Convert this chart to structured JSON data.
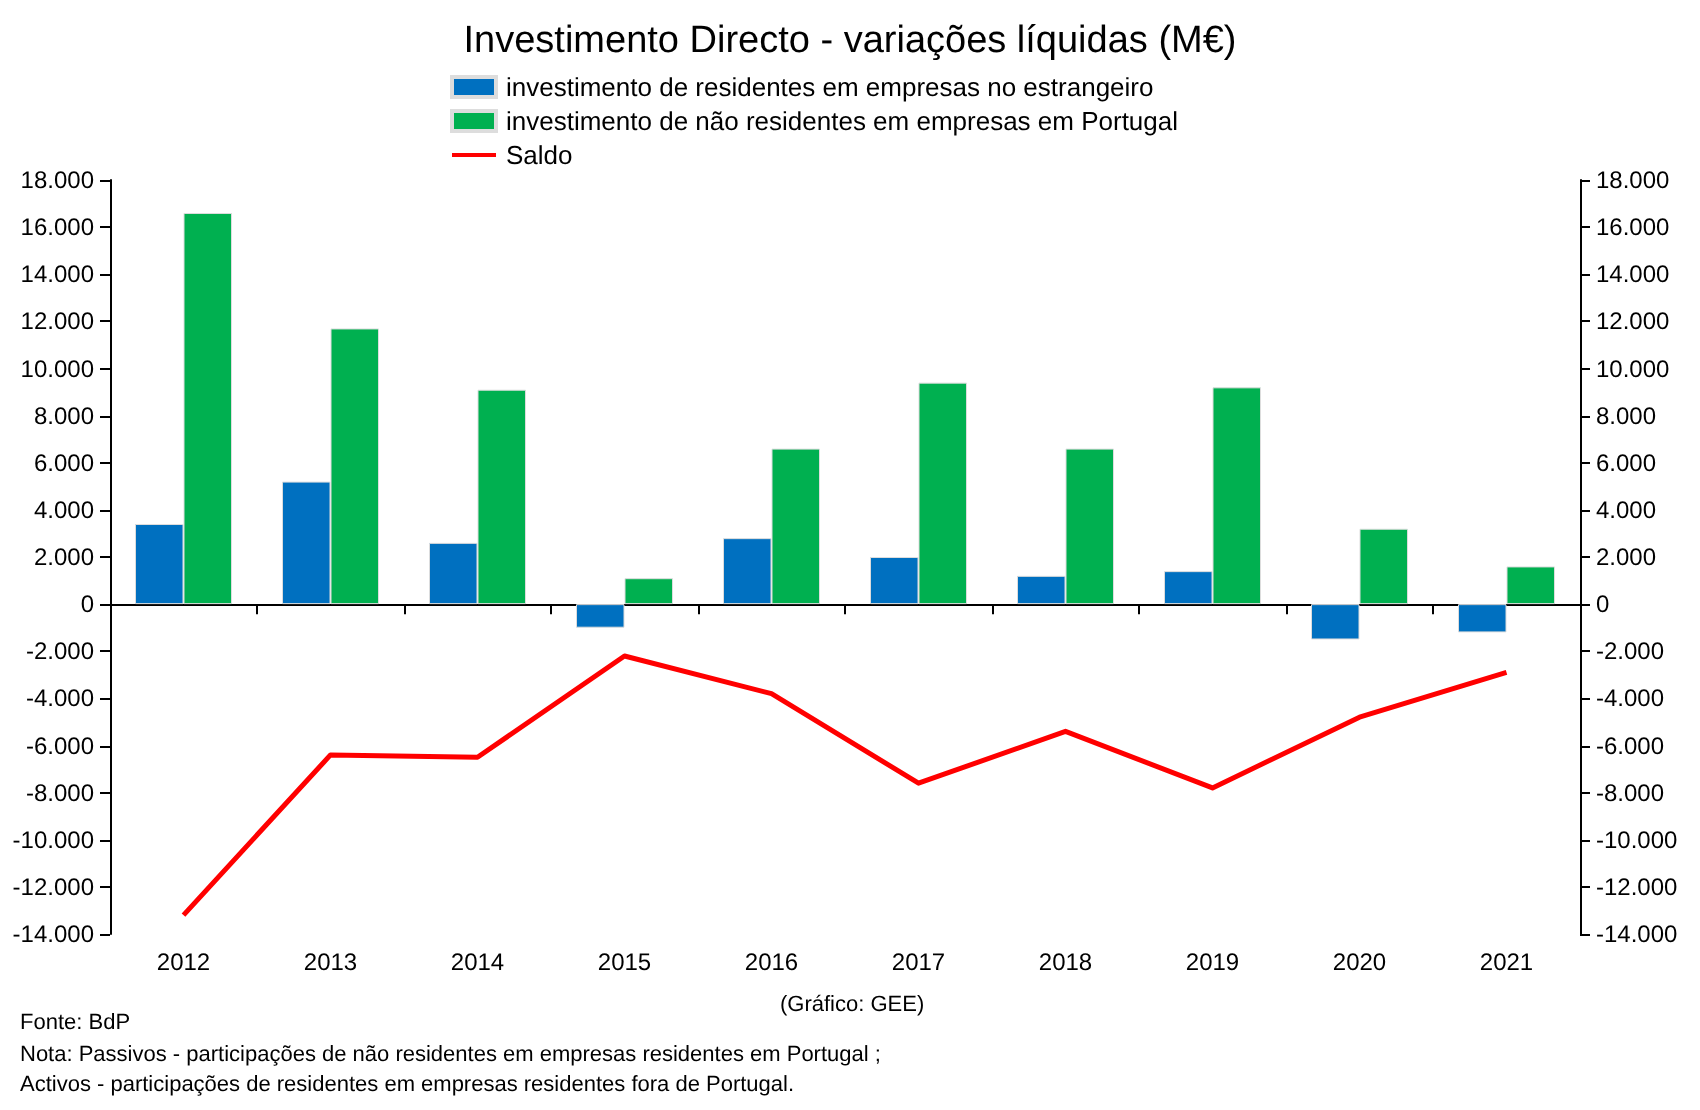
{
  "chart_data": {
    "type": "bar",
    "title": "Investimento Directo - variações líquidas (M€)",
    "categories": [
      "2012",
      "2013",
      "2014",
      "2015",
      "2016",
      "2017",
      "2018",
      "2019",
      "2020",
      "2021"
    ],
    "series": [
      {
        "name": "investimento de residentes em empresas no estrangeiro",
        "color": "#0070c0",
        "values": [
          3400,
          5200,
          2600,
          -1000,
          2800,
          2000,
          1200,
          1400,
          -1500,
          -1200
        ]
      },
      {
        "name": "investimento de não residentes em empresas em Portugal",
        "color": "#00b050",
        "values": [
          16600,
          11700,
          9100,
          1100,
          6600,
          9400,
          6600,
          9200,
          3200,
          1600
        ]
      },
      {
        "name": "Saldo",
        "type": "line",
        "color": "#ff0000",
        "values": [
          -13200,
          -6400,
          -6500,
          -2200,
          -3800,
          -7600,
          -5400,
          -7800,
          -4800,
          -2900
        ]
      }
    ],
    "ylim": [
      -14000,
      18000
    ],
    "yticks": [
      {
        "value": -14000,
        "label": "-14.000"
      },
      {
        "value": -12000,
        "label": "-12.000"
      },
      {
        "value": -10000,
        "label": "-10.000"
      },
      {
        "value": -8000,
        "label": "-8.000"
      },
      {
        "value": -6000,
        "label": "-6.000"
      },
      {
        "value": -4000,
        "label": "-4.000"
      },
      {
        "value": -2000,
        "label": "-2.000"
      },
      0,
      {
        "value": 2000,
        "label": "2.000"
      },
      {
        "value": 4000,
        "label": "4.000"
      },
      {
        "value": 6000,
        "label": "6.000"
      },
      {
        "value": 8000,
        "label": "8.000"
      },
      {
        "value": 10000,
        "label": "10.000"
      },
      {
        "value": 12000,
        "label": "12.000"
      },
      {
        "value": 14000,
        "label": "14.000"
      },
      {
        "value": 16000,
        "label": "16.000"
      },
      {
        "value": 18000,
        "label": "18.000"
      }
    ],
    "y2lim": [
      -14000,
      18000
    ],
    "y2ticks": [
      {
        "value": -14000,
        "label": "-14.000"
      },
      {
        "value": -12000,
        "label": "-12.000"
      },
      {
        "value": -10000,
        "label": "-10.000"
      },
      {
        "value": -8000,
        "label": "-8.000"
      },
      {
        "value": -6000,
        "label": "-6.000"
      },
      {
        "value": -4000,
        "label": "-4.000"
      },
      {
        "value": -2000,
        "label": "-2.000"
      },
      0,
      {
        "value": 2000,
        "label": "2.000"
      },
      {
        "value": 4000,
        "label": "4.000"
      },
      {
        "value": 6000,
        "label": "6.000"
      },
      {
        "value": 8000,
        "label": "8.000"
      },
      {
        "value": 10000,
        "label": "10.000"
      },
      {
        "value": 12000,
        "label": "12.000"
      },
      {
        "value": 14000,
        "label": "14.000"
      },
      {
        "value": 16000,
        "label": "16.000"
      },
      {
        "value": 18000,
        "label": "18.000"
      }
    ],
    "legend": "top",
    "marker": "none",
    "line_style": "solid",
    "annotations": [
      "(Gráfico: GEE)",
      "Fonte: BdP",
      "Nota: Passivos - participações de não residentes em empresas residentes em Portugal ;",
      "Activos - participações de residentes em empresas residentes fora de Portugal."
    ]
  }
}
